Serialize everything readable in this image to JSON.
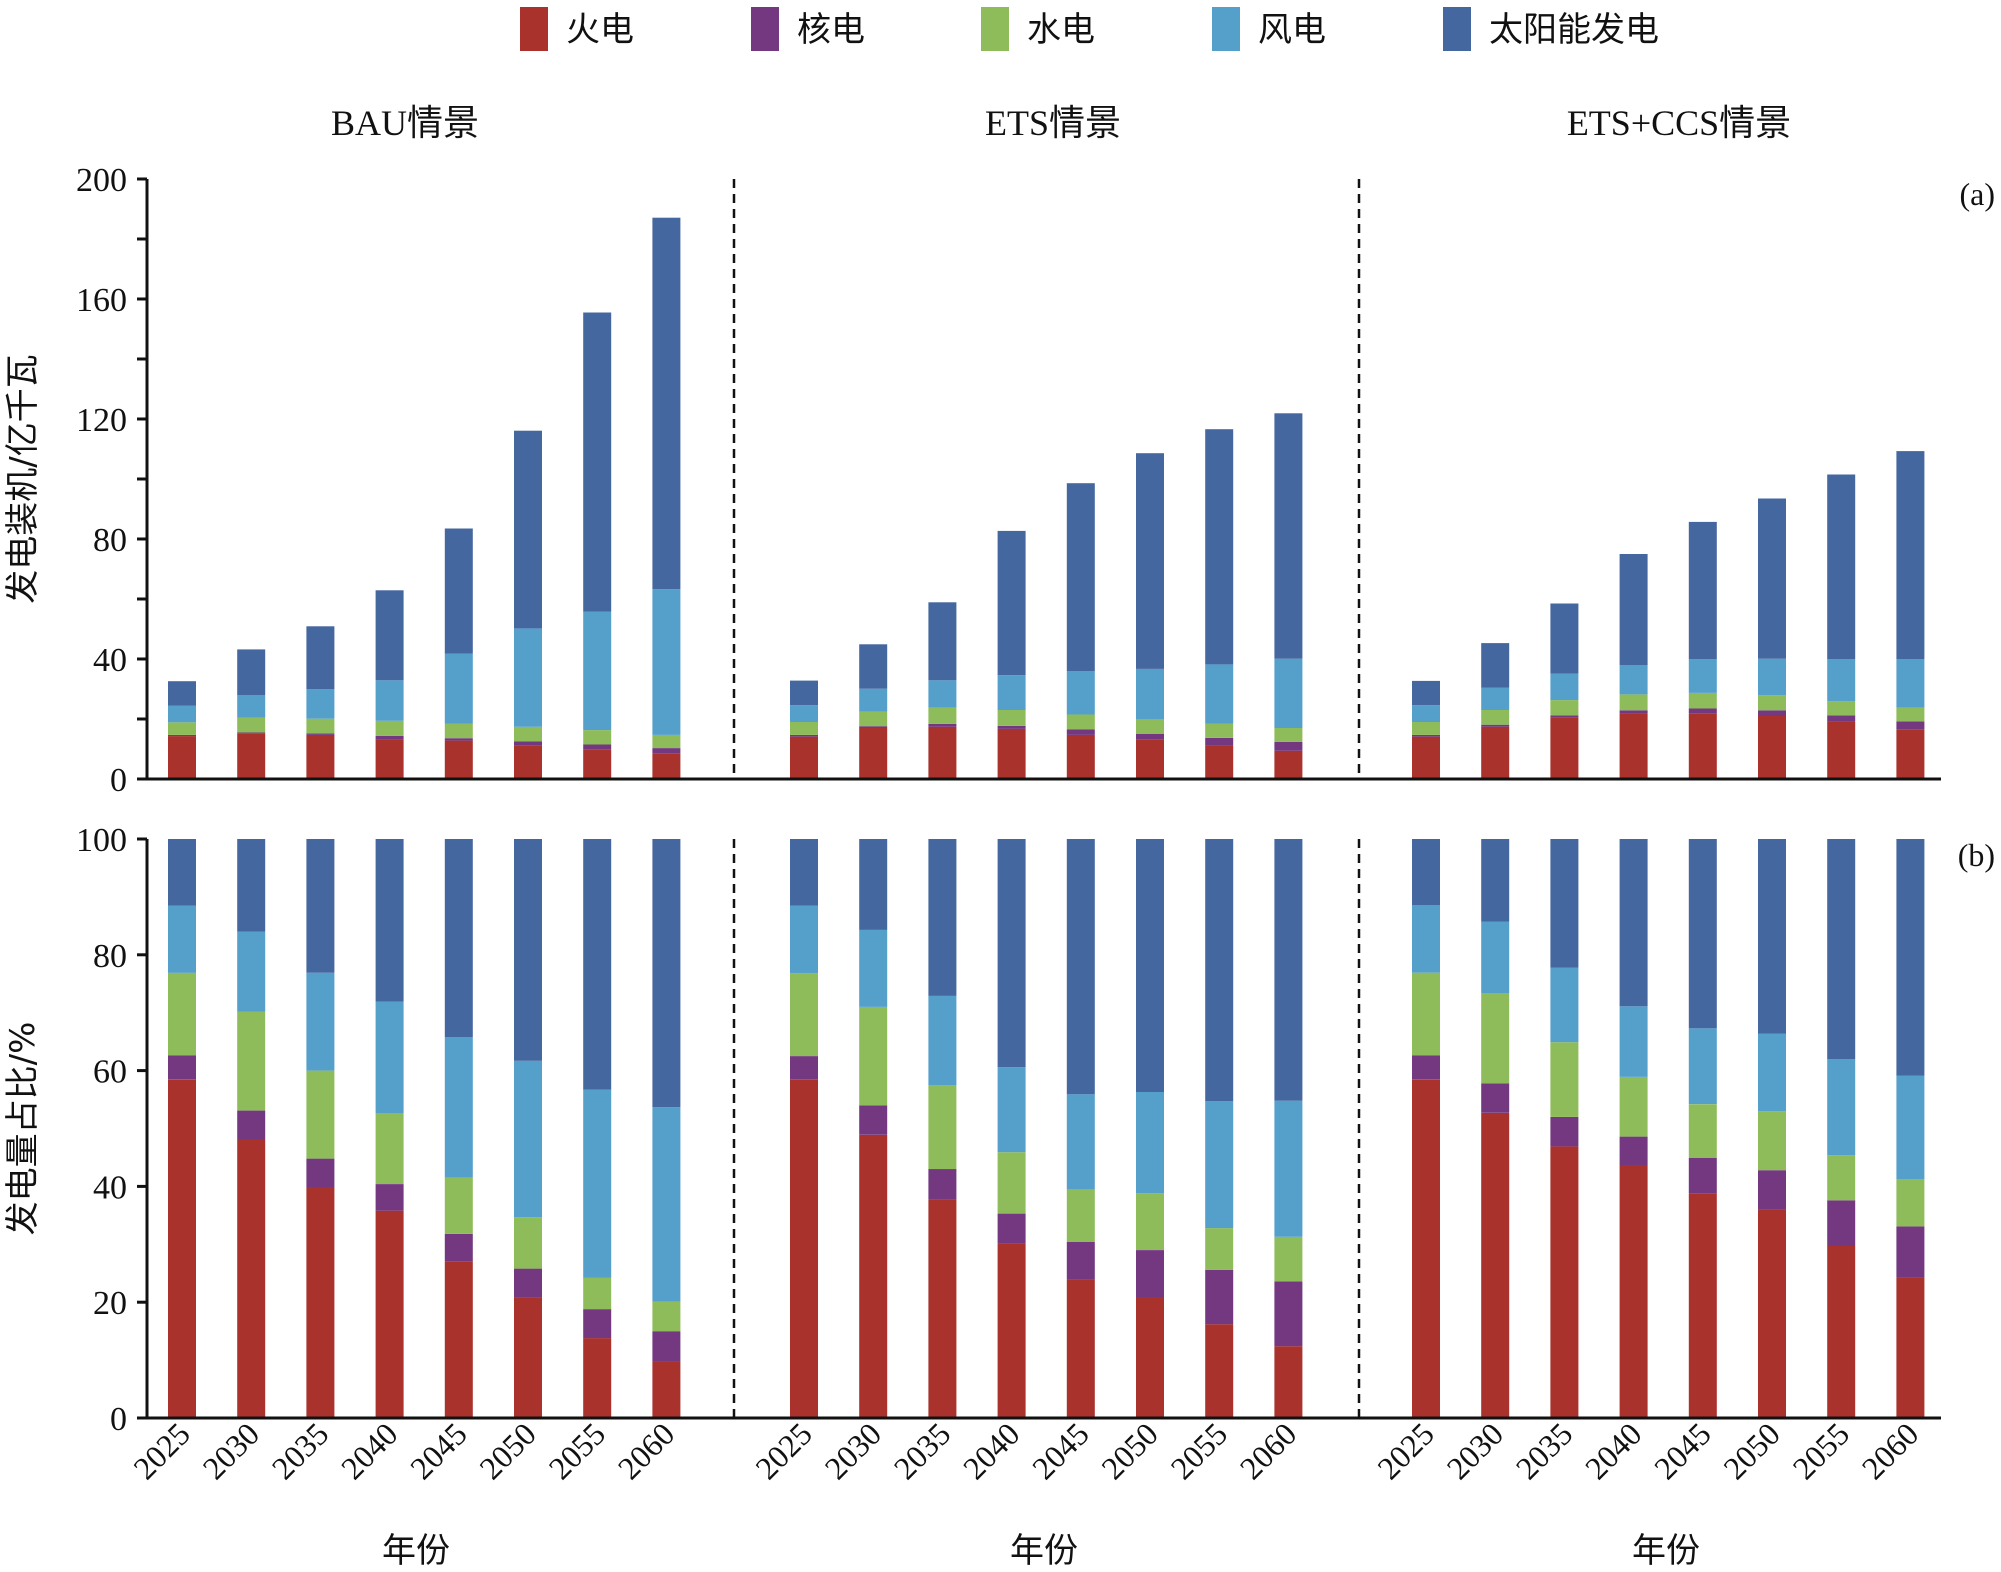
{
  "legend": [
    {
      "key": "thermal",
      "label": "火电",
      "color": "#A9322D"
    },
    {
      "key": "nuclear",
      "label": "核电",
      "color": "#733880"
    },
    {
      "key": "hydro",
      "label": "水电",
      "color": "#8FBC5A"
    },
    {
      "key": "wind",
      "label": "风电",
      "color": "#55A0CB"
    },
    {
      "key": "solar",
      "label": "太阳能发电",
      "color": "#4567A0"
    }
  ],
  "scenarios": [
    "BAU情景",
    "ETS情景",
    "ETS+CCS情景"
  ],
  "xlabel": "年份",
  "chart_data": [
    {
      "type": "bar",
      "stacked": true,
      "panel": "(a)",
      "ylabel": "发电装机/亿千瓦",
      "ylim": [
        0,
        200
      ],
      "yticks": [
        0,
        40,
        80,
        120,
        160,
        200
      ],
      "yminor_step": 20,
      "categories": [
        "2025",
        "2030",
        "2035",
        "2040",
        "2045",
        "2050",
        "2055",
        "2060"
      ],
      "groups": [
        {
          "name": "BAU情景",
          "series": [
            {
              "name": "火电",
              "values": [
                14.3,
                15.1,
                14.7,
                13.3,
                12.8,
                11.1,
                9.9,
                8.6
              ]
            },
            {
              "name": "核电",
              "values": [
                0.4,
                0.4,
                0.5,
                1.1,
                0.8,
                1.4,
                1.6,
                1.7
              ]
            },
            {
              "name": "水电",
              "values": [
                4.2,
                4.9,
                4.9,
                5.0,
                4.9,
                4.9,
                4.8,
                4.4
              ]
            },
            {
              "name": "风电",
              "values": [
                5.5,
                7.6,
                9.8,
                13.5,
                23.3,
                32.8,
                39.5,
                48.6
              ]
            },
            {
              "name": "太阳能发电",
              "values": [
                8.2,
                15.2,
                21.0,
                30.0,
                41.7,
                65.9,
                99.7,
                123.8
              ]
            }
          ]
        },
        {
          "name": "ETS情景",
          "series": [
            {
              "name": "火电",
              "values": [
                14.1,
                17.0,
                17.4,
                16.7,
                14.7,
                13.1,
                11.2,
                9.4
              ]
            },
            {
              "name": "核电",
              "values": [
                0.6,
                0.6,
                1.0,
                1.0,
                1.8,
                1.9,
                2.5,
                3.0
              ]
            },
            {
              "name": "水电",
              "values": [
                4.3,
                4.8,
                5.4,
                5.3,
                5.0,
                5.0,
                4.8,
                4.6
              ]
            },
            {
              "name": "风电",
              "values": [
                5.6,
                7.7,
                9.1,
                11.6,
                14.4,
                16.7,
                19.7,
                23.1
              ]
            },
            {
              "name": "太阳能发电",
              "values": [
                8.2,
                14.8,
                26.0,
                48.1,
                62.7,
                71.9,
                78.4,
                81.8
              ]
            }
          ]
        },
        {
          "name": "ETS+CCS情景",
          "series": [
            {
              "name": "火电",
              "values": [
                14.1,
                17.4,
                20.4,
                21.8,
                21.9,
                21.0,
                19.2,
                16.6
              ]
            },
            {
              "name": "核电",
              "values": [
                0.6,
                0.7,
                0.8,
                1.1,
                1.6,
                1.9,
                2.0,
                2.6
              ]
            },
            {
              "name": "水电",
              "values": [
                4.3,
                4.9,
                5.1,
                5.3,
                5.2,
                5.0,
                4.7,
                4.6
              ]
            },
            {
              "name": "风电",
              "values": [
                5.6,
                7.5,
                8.8,
                9.8,
                11.2,
                12.2,
                14.1,
                16.2
              ]
            },
            {
              "name": "太阳能发电",
              "values": [
                8.1,
                14.8,
                23.4,
                37.0,
                45.8,
                53.4,
                61.5,
                69.3
              ]
            }
          ]
        }
      ]
    },
    {
      "type": "bar",
      "stacked": true,
      "panel": "(b)",
      "ylabel": "发电量占比/%",
      "ylim": [
        0,
        100
      ],
      "yticks": [
        0,
        20,
        40,
        60,
        80,
        100
      ],
      "yminor_step": null,
      "categories": [
        "2025",
        "2030",
        "2035",
        "2040",
        "2045",
        "2050",
        "2055",
        "2060"
      ],
      "groups": [
        {
          "name": "BAU情景",
          "series": [
            {
              "name": "火电",
              "values": [
                58.5,
                48.2,
                39.9,
                35.8,
                27.0,
                20.8,
                13.8,
                9.7
              ]
            },
            {
              "name": "核电",
              "values": [
                4.1,
                4.9,
                4.9,
                4.6,
                4.8,
                5.0,
                5.0,
                5.3
              ]
            },
            {
              "name": "水电",
              "values": [
                14.3,
                17.1,
                15.2,
                12.2,
                9.7,
                8.9,
                5.4,
                5.1
              ]
            },
            {
              "name": "风电",
              "values": [
                11.6,
                13.8,
                16.9,
                19.3,
                24.3,
                27.0,
                32.5,
                33.6
              ]
            },
            {
              "name": "太阳能发电",
              "values": [
                11.5,
                16.0,
                23.1,
                28.1,
                34.2,
                38.3,
                43.3,
                46.3
              ]
            }
          ]
        },
        {
          "name": "ETS情景",
          "series": [
            {
              "name": "火电",
              "values": [
                58.4,
                48.9,
                37.8,
                30.2,
                23.9,
                20.9,
                16.2,
                12.4
              ]
            },
            {
              "name": "核电",
              "values": [
                4.1,
                5.1,
                5.2,
                5.1,
                6.5,
                8.1,
                9.4,
                11.2
              ]
            },
            {
              "name": "水电",
              "values": [
                14.3,
                17.0,
                14.4,
                10.6,
                9.0,
                9.8,
                7.2,
                7.7
              ]
            },
            {
              "name": "风电",
              "values": [
                11.7,
                13.3,
                15.5,
                14.7,
                16.5,
                17.5,
                21.9,
                23.5
              ]
            },
            {
              "name": "太阳能发电",
              "values": [
                11.5,
                15.7,
                27.1,
                39.4,
                44.1,
                43.7,
                45.3,
                45.2
              ]
            }
          ]
        },
        {
          "name": "ETS+CCS情景",
          "series": [
            {
              "name": "火电",
              "values": [
                58.5,
                52.7,
                46.9,
                43.7,
                38.8,
                36.0,
                29.7,
                24.2
              ]
            },
            {
              "name": "核电",
              "values": [
                4.1,
                5.1,
                5.1,
                4.9,
                6.1,
                6.8,
                7.9,
                8.9
              ]
            },
            {
              "name": "水电",
              "values": [
                14.3,
                15.6,
                12.9,
                10.3,
                9.3,
                10.2,
                7.8,
                8.1
              ]
            },
            {
              "name": "风电",
              "values": [
                11.7,
                12.3,
                12.9,
                12.2,
                13.1,
                13.4,
                16.6,
                17.9
              ]
            },
            {
              "name": "太阳能发电",
              "values": [
                11.4,
                14.3,
                22.2,
                28.9,
                32.7,
                33.6,
                38.0,
                40.9
              ]
            }
          ]
        }
      ]
    }
  ]
}
